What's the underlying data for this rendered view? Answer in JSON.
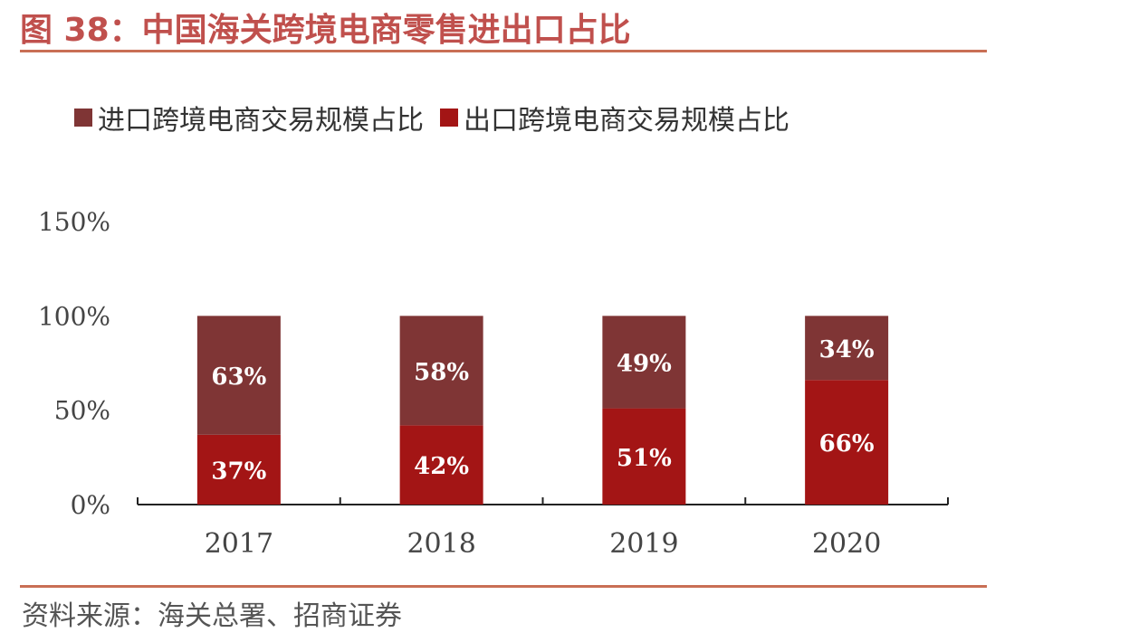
{
  "figure": {
    "title": "图 38：中国海关跨境电商零售进出口占比",
    "source": "资料来源：海关总署、招商证券"
  },
  "colors": {
    "accent": "#c0504d",
    "import": "#7f3535",
    "export": "#a31515"
  },
  "chart_data": {
    "type": "bar",
    "stacked": true,
    "categories": [
      "2017",
      "2018",
      "2019",
      "2020"
    ],
    "series": [
      {
        "name": "出口跨境电商交易规模占比",
        "values": [
          37,
          42,
          51,
          66
        ],
        "labels": [
          "37%",
          "42%",
          "51%",
          "66%"
        ]
      },
      {
        "name": "进口跨境电商交易规模占比",
        "values": [
          63,
          58,
          49,
          34
        ],
        "labels": [
          "63%",
          "58%",
          "49%",
          "34%"
        ]
      }
    ],
    "legend": [
      "进口跨境电商交易规模占比",
      "出口跨境电商交易规模占比"
    ],
    "yticks": [
      "0%",
      "50%",
      "100%",
      "150%"
    ],
    "ylim": [
      0,
      150
    ],
    "legend_position": "top",
    "grid": false
  }
}
